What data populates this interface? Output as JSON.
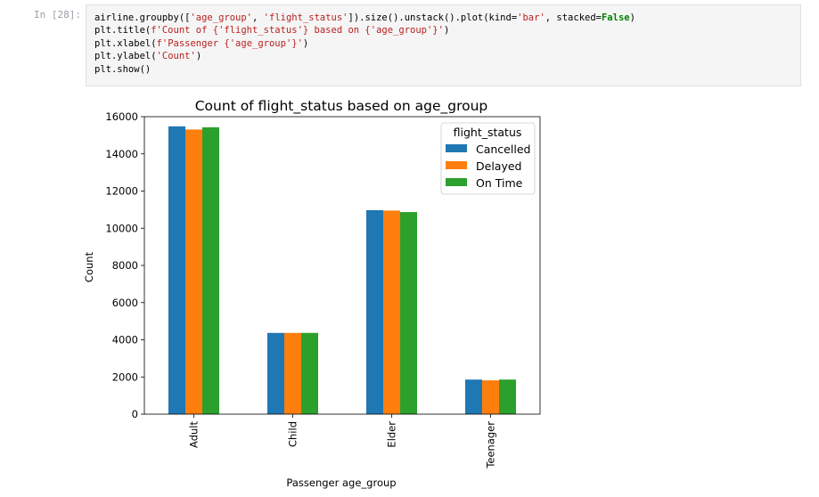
{
  "cell": {
    "prompt": "In [28]:",
    "code_lines": [
      [
        {
          "t": "airline.groupby([",
          "c": "tk-plain"
        },
        {
          "t": "'age_group'",
          "c": "tk-str"
        },
        {
          "t": ", ",
          "c": "tk-plain"
        },
        {
          "t": "'flight_status'",
          "c": "tk-str"
        },
        {
          "t": "]).size().unstack().plot(kind=",
          "c": "tk-plain"
        },
        {
          "t": "'bar'",
          "c": "tk-str"
        },
        {
          "t": ", stacked=",
          "c": "tk-plain"
        },
        {
          "t": "False",
          "c": "tk-kw"
        },
        {
          "t": ")",
          "c": "tk-plain"
        }
      ],
      [
        {
          "t": "plt.title(",
          "c": "tk-plain"
        },
        {
          "t": "f'Count of {'flight_status'} based on {'age_group'}'",
          "c": "tk-str"
        },
        {
          "t": ")",
          "c": "tk-plain"
        }
      ],
      [
        {
          "t": "plt.xlabel(",
          "c": "tk-plain"
        },
        {
          "t": "f'Passenger {'age_group'}'",
          "c": "tk-str"
        },
        {
          "t": ")",
          "c": "tk-plain"
        }
      ],
      [
        {
          "t": "plt.ylabel(",
          "c": "tk-plain"
        },
        {
          "t": "'Count'",
          "c": "tk-str"
        },
        {
          "t": ")",
          "c": "tk-plain"
        }
      ],
      [
        {
          "t": "plt.show()",
          "c": "tk-plain"
        }
      ]
    ]
  },
  "chart_data": {
    "type": "bar",
    "title": "Count of flight_status based on age_group",
    "xlabel": "Passenger age_group",
    "ylabel": "Count",
    "categories": [
      "Adult",
      "Child",
      "Elder",
      "Teenager"
    ],
    "series": [
      {
        "name": "Cancelled",
        "color": "#1f77b4",
        "values": [
          15480,
          4370,
          10970,
          1860
        ]
      },
      {
        "name": "Delayed",
        "color": "#ff7f0e",
        "values": [
          15310,
          4370,
          10950,
          1820
        ]
      },
      {
        "name": "On Time",
        "color": "#2ca02c",
        "values": [
          15430,
          4370,
          10870,
          1860
        ]
      }
    ],
    "ylim": [
      0,
      16000
    ],
    "yticks": [
      0,
      2000,
      4000,
      6000,
      8000,
      10000,
      12000,
      14000,
      16000
    ],
    "legend": {
      "title": "flight_status",
      "placement": "top-right"
    },
    "grid": false
  }
}
